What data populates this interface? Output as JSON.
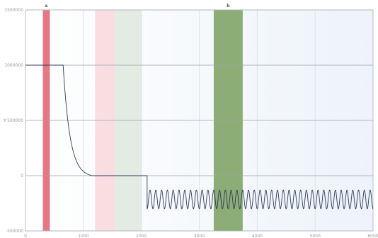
{
  "chart_data": {
    "type": "line",
    "title": "",
    "xlabel": "",
    "ylabel": "Y",
    "xlim": [
      0,
      6000
    ],
    "ylim": [
      -500000,
      1500000
    ],
    "grid": true,
    "x_ticks": [
      0,
      1000,
      2000,
      3000,
      4000,
      5000,
      6000
    ],
    "x_tick_labels": [
      "0",
      "1000",
      "2000",
      "3000",
      "4000",
      "5000",
      "6000"
    ],
    "y_ticks": [
      -500000,
      0,
      500000,
      1000000,
      1500000
    ],
    "y_tick_labels": [
      "-500000",
      "0",
      "500000",
      "1000000",
      "1500000"
    ],
    "bands": [
      {
        "x0": 300,
        "x1": 420,
        "color": "#e06070",
        "opacity": 0.85,
        "marker": "a"
      },
      {
        "x0": 1200,
        "x1": 1550,
        "color": "#f7b7c2",
        "opacity": 0.45,
        "marker": ""
      },
      {
        "x0": 1550,
        "x1": 2000,
        "color": "#c7d9c2",
        "opacity": 0.45,
        "marker": ""
      },
      {
        "x0": 3250,
        "x1": 3750,
        "color": "#5f8f3d",
        "opacity": 0.7,
        "marker": "b"
      }
    ],
    "band_markers": [
      "a",
      "b"
    ],
    "series": [
      {
        "color": "#2f3a5c",
        "segments": [
          {
            "kind": "flat",
            "x0": 0,
            "x1": 650,
            "y": 1000000
          },
          {
            "kind": "decay",
            "x0": 650,
            "x1": 1150,
            "y_start": 1000000,
            "y_end": 0
          },
          {
            "kind": "flat",
            "x0": 1150,
            "x1": 2100,
            "y": 0
          },
          {
            "kind": "step",
            "x": 2100,
            "y_from": 0,
            "y_to": -300000
          },
          {
            "kind": "oscillation",
            "x0": 2100,
            "x1": 6000,
            "y_min": -300000,
            "y_max": -130000,
            "period": 100
          }
        ]
      }
    ]
  }
}
